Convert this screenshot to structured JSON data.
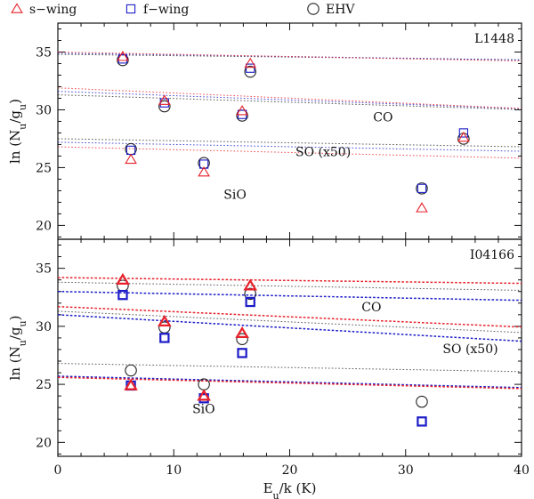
{
  "chart_data": {
    "type": "scatter",
    "xlabel": {
      "main": "E",
      "sub": "u",
      "rest": "/k (K)"
    },
    "ylabel": {
      "main": "ln (N",
      "sub1": "u",
      "mid": "/g",
      "sub2": "u",
      "end": ")"
    },
    "xlim": [
      0,
      40
    ],
    "xticks": [
      0,
      10,
      20,
      30,
      40
    ],
    "colors": {
      "s_wing": "#e8202a",
      "f_wing": "#1c1cc8",
      "ehv": "#222222"
    },
    "legend": [
      {
        "series": "s_wing",
        "label": "s−wing",
        "marker": "triangle"
      },
      {
        "series": "f_wing",
        "label": "f−wing",
        "marker": "square"
      },
      {
        "series": "ehv",
        "label": "EHV",
        "marker": "circle"
      }
    ],
    "panels": [
      {
        "id": "L1448",
        "title": "L1448",
        "ylim": [
          18.8,
          37.5
        ],
        "yticks": [
          20,
          25,
          30,
          35
        ],
        "style": "light",
        "annotations": [
          {
            "text": "CO",
            "x": 27.2,
            "y": 29.0
          },
          {
            "text": "SO (x50)",
            "x": 20.5,
            "y": 26.0
          },
          {
            "text": "SiO",
            "x": 14.3,
            "y": 22.3
          }
        ],
        "groups": [
          {
            "molecule": "CO",
            "series": {
              "s_wing": {
                "points": [
                  [
                    5.6,
                    34.6
                  ],
                  [
                    16.6,
                    34.0
                  ]
                ],
                "fit": {
                  "ln0": 35.0,
                  "b": 0.0195,
                  "ln_min": 25.0
                }
              },
              "f_wing": {
                "points": [
                  [
                    5.6,
                    34.4
                  ],
                  [
                    16.6,
                    33.6
                  ]
                ],
                "fit": {
                  "ln0": 34.9,
                  "b": 0.0145,
                  "ln_min": 25.0
                }
              },
              "ehv": {
                "points": [
                  [
                    5.6,
                    34.3
                  ],
                  [
                    16.6,
                    33.3
                  ]
                ],
                "fit": {
                  "ln0": 34.8,
                  "b": 0.0118,
                  "ln_min": 25.0
                }
              }
            }
          },
          {
            "molecule": "SO",
            "series": {
              "s_wing": {
                "points": [
                  [
                    9.2,
                    30.8
                  ],
                  [
                    15.9,
                    29.9
                  ],
                  [
                    35.0,
                    27.6
                  ]
                ],
                "fit": {
                  "ln0": 31.9,
                  "b": 0.0445,
                  "ln_min": 25.0
                }
              },
              "f_wing": {
                "points": [
                  [
                    9.2,
                    30.6
                  ],
                  [
                    15.9,
                    29.6
                  ],
                  [
                    35.0,
                    28.0
                  ]
                ],
                "fit": {
                  "ln0": 31.6,
                  "b": 0.0375,
                  "ln_min": 25.0
                }
              },
              "ehv": {
                "points": [
                  [
                    9.2,
                    30.3
                  ],
                  [
                    15.9,
                    29.5
                  ],
                  [
                    35.0,
                    27.5
                  ]
                ],
                "fit": {
                  "ln0": 31.3,
                  "b": 0.032,
                  "ln_min": 25.0
                }
              }
            }
          },
          {
            "molecule": "SiO",
            "series": {
              "s_wing": {
                "points": [
                  [
                    6.3,
                    25.7
                  ],
                  [
                    12.6,
                    24.6
                  ],
                  [
                    31.4,
                    21.5
                  ]
                ],
                "fit": {
                  "ln0": 26.8,
                  "b": 0.0245,
                  "ln_min": 17.0
                }
              },
              "f_wing": {
                "points": [
                  [
                    6.3,
                    26.5
                  ],
                  [
                    12.6,
                    25.3
                  ],
                  [
                    31.4,
                    23.2
                  ]
                ],
                "fit": {
                  "ln0": 27.2,
                  "b": 0.0196,
                  "ln_min": 17.0
                }
              },
              "ehv": {
                "points": [
                  [
                    6.3,
                    26.6
                  ],
                  [
                    12.6,
                    25.4
                  ],
                  [
                    31.4,
                    23.2
                  ]
                ],
                "fit": {
                  "ln0": 27.5,
                  "b": 0.0175,
                  "ln_min": 17.0
                }
              }
            }
          }
        ]
      },
      {
        "id": "I04166",
        "title": "I04166",
        "ylim": [
          18.8,
          37.5
        ],
        "yticks": [
          20,
          25,
          30,
          35
        ],
        "style": "dark",
        "annotations": [
          {
            "text": "CO",
            "x": 26.2,
            "y": 31.3
          },
          {
            "text": "SO (x50)",
            "x": 33.2,
            "y": 27.7
          },
          {
            "text": "SiO",
            "x": 11.6,
            "y": 22.5
          }
        ],
        "groups": [
          {
            "molecule": "CO",
            "series": {
              "s_wing": {
                "points": [
                  [
                    5.6,
                    34.0
                  ],
                  [
                    16.6,
                    33.5
                  ]
                ],
                "fit": {
                  "ln0": 34.2,
                  "b": 0.0125,
                  "ln_min": 25.0
                }
              },
              "f_wing": {
                "points": [
                  [
                    5.6,
                    32.7
                  ],
                  [
                    16.6,
                    32.1
                  ]
                ],
                "fit": {
                  "ln0": 33.0,
                  "b": 0.019,
                  "ln_min": 25.0
                }
              },
              "ehv": {
                "points": [
                  [
                    5.6,
                    33.5
                  ],
                  [
                    16.6,
                    32.8
                  ]
                ],
                "fit": {
                  "ln0": 33.8,
                  "b": 0.0175,
                  "ln_min": 25.0
                }
              }
            }
          },
          {
            "molecule": "SO",
            "series": {
              "s_wing": {
                "points": [
                  [
                    9.2,
                    30.4
                  ],
                  [
                    15.9,
                    29.4
                  ]
                ],
                "fit": {
                  "ln0": 31.7,
                  "b": 0.044,
                  "ln_min": 20.0
                }
              },
              "f_wing": {
                "points": [
                  [
                    9.2,
                    29.0
                  ],
                  [
                    15.9,
                    27.7
                  ]
                ],
                "fit": {
                  "ln0": 31.0,
                  "b": 0.057,
                  "ln_min": 20.0
                }
              },
              "ehv": {
                "points": [
                  [
                    9.2,
                    29.9
                  ],
                  [
                    15.9,
                    28.9
                  ]
                ],
                "fit": {
                  "ln0": 31.3,
                  "b": 0.046,
                  "ln_min": 20.0
                }
              }
            }
          },
          {
            "molecule": "SiO",
            "series": {
              "s_wing": {
                "points": [
                  [
                    6.3,
                    24.9
                  ],
                  [
                    12.6,
                    24.0
                  ]
                ],
                "fit": {
                  "ln0": 25.6,
                  "b": 0.0242,
                  "ln_min": 17.0
                }
              },
              "f_wing": {
                "points": [
                  [
                    6.3,
                    24.9
                  ],
                  [
                    12.6,
                    23.8
                  ],
                  [
                    31.4,
                    21.8
                  ]
                ],
                "fit": {
                  "ln0": 25.7,
                  "b": 0.0246,
                  "ln_min": 17.0
                }
              },
              "ehv": {
                "points": [
                  [
                    6.3,
                    26.2
                  ],
                  [
                    12.6,
                    25.0
                  ],
                  [
                    31.4,
                    23.5
                  ]
                ],
                "fit": {
                  "ln0": 26.8,
                  "b": 0.0176,
                  "ln_min": 17.0
                }
              }
            }
          }
        ]
      }
    ]
  }
}
